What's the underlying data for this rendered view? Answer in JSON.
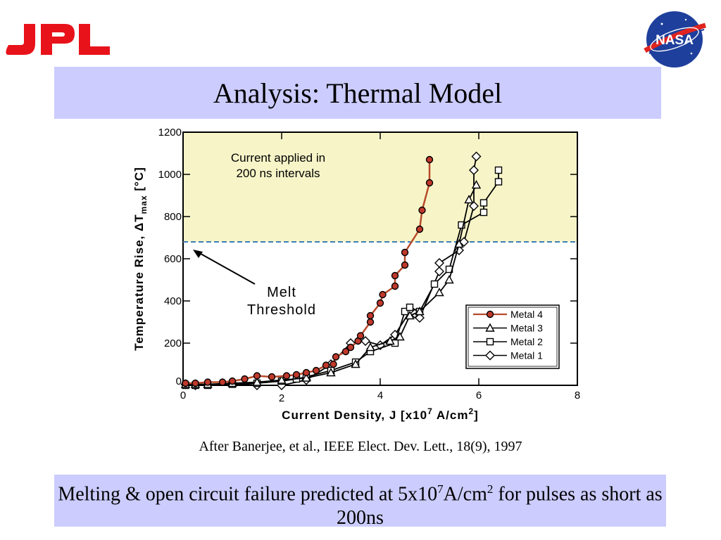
{
  "slide": {
    "title": "Analysis: Thermal Model",
    "citation": "After Banerjee, et al., IEEE Elect. Dev. Lett., 18(9), 1997",
    "conclusion": {
      "part1": "Melting & open circuit failure predicted at 5x10",
      "sup1": "7",
      "part2": "A/cm",
      "sup2": "2",
      "part3": " for pulses as short as 200ns"
    },
    "logos": {
      "left": "JPL",
      "right": "NASA"
    }
  },
  "chart_data": {
    "type": "scatter",
    "xlabel": "Current Density, J [x10",
    "xlabel_sup": "7",
    "xlabel_mid": " A/cm",
    "xlabel_sup2": "2",
    "xlabel_end": "]",
    "ylabel_pre": "Temperature Rise, ΔT",
    "ylabel_sub": "max",
    "ylabel_post": " [°C]",
    "xlim": [
      0,
      8
    ],
    "ylim": [
      0,
      1200
    ],
    "x_ticks": [
      "0",
      "2",
      "4",
      "6",
      "8"
    ],
    "y_ticks": [
      "0",
      "200",
      "400",
      "600",
      "800",
      "1000",
      "1200"
    ],
    "melt_threshold": 680,
    "region_note_line1": "Current applied in",
    "region_note_line2": "200 ns intervals",
    "arrow_label_line1": "Melt",
    "arrow_label_line2": "Threshold",
    "legend_placement": "bottom-right",
    "colors": {
      "region": "#f7f5c8",
      "threshold": "#3a7fb5",
      "metal4": "#b84a2a",
      "marker4": "#c0392b"
    },
    "series": [
      {
        "name": "Metal 4",
        "marker": "circle",
        "x": [
          0.05,
          0.25,
          0.5,
          0.8,
          1.0,
          1.25,
          1.5,
          1.8,
          2.1,
          2.3,
          2.5,
          2.7,
          2.9,
          3.05,
          3.1,
          3.3,
          3.4,
          3.55,
          3.6,
          3.8,
          3.8,
          4.0,
          4.05,
          4.3,
          4.3,
          4.5,
          4.5,
          4.8,
          4.85,
          5.0,
          5.0
        ],
        "y": [
          10,
          10,
          15,
          15,
          20,
          30,
          45,
          40,
          45,
          50,
          60,
          70,
          95,
          100,
          135,
          160,
          180,
          210,
          235,
          300,
          330,
          390,
          430,
          470,
          520,
          570,
          630,
          740,
          830,
          960,
          1070
        ]
      },
      {
        "name": "Metal 3",
        "marker": "triangle",
        "x": [
          0.05,
          0.25,
          0.5,
          1.0,
          1.5,
          2.0,
          2.5,
          3.0,
          3.5,
          3.8,
          4.2,
          4.4,
          4.6,
          4.8,
          5.2,
          5.4,
          5.6,
          5.8,
          5.95
        ],
        "y": [
          5,
          5,
          5,
          10,
          15,
          25,
          35,
          60,
          100,
          180,
          210,
          230,
          330,
          350,
          440,
          500,
          670,
          880,
          950
        ]
      },
      {
        "name": "Metal 2",
        "marker": "square",
        "x": [
          0.05,
          0.25,
          0.5,
          1.0,
          1.5,
          2.0,
          2.3,
          2.5,
          3.0,
          3.5,
          3.8,
          4.3,
          4.5,
          4.6,
          4.8,
          5.1,
          5.4,
          5.65,
          6.1,
          6.1,
          6.4,
          6.4
        ],
        "y": [
          0,
          0,
          0,
          5,
          10,
          20,
          30,
          40,
          70,
          110,
          160,
          200,
          350,
          370,
          350,
          480,
          550,
          760,
          820,
          865,
          965,
          1020
        ]
      },
      {
        "name": "Metal 1",
        "marker": "diamond",
        "x": [
          0.05,
          0.25,
          1.0,
          1.5,
          2.0,
          2.5,
          3.0,
          3.4,
          3.7,
          4.0,
          4.3,
          4.6,
          4.7,
          4.8,
          5.2,
          5.2,
          5.6,
          5.7,
          5.9,
          5.9,
          5.95
        ],
        "y": [
          5,
          0,
          10,
          0,
          0,
          25,
          100,
          200,
          210,
          190,
          240,
          350,
          340,
          320,
          540,
          580,
          640,
          680,
          850,
          1020,
          1085
        ]
      }
    ]
  }
}
